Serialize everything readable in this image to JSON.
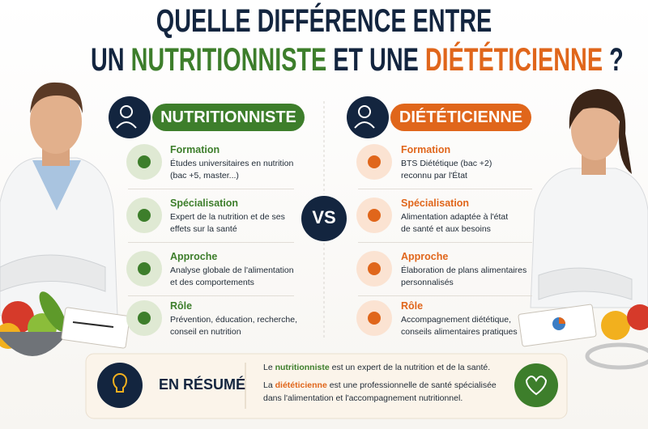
{
  "title": {
    "line1": "QUELLE DIFFÉRENCE ENTRE",
    "line2": {
      "part1": "UN",
      "part2": "NUTRITIONNISTE",
      "part3": "ET UNE",
      "part4": "DIÉTÉTICIENNE",
      "part5": "?"
    }
  },
  "left": {
    "header": "NUTRITIONNISTE",
    "items": [
      {
        "title": "Formation",
        "lines": [
          "Études universitaires en nutrition",
          "(bac +5, master...)"
        ]
      },
      {
        "title": "Spécialisation",
        "lines": [
          "Expert de la nutrition et de ses",
          "effets sur la santé"
        ]
      },
      {
        "title": "Approche",
        "lines": [
          "Analyse globale de l'alimentation",
          "et des comportements"
        ]
      },
      {
        "title": "Rôle",
        "lines": [
          "Prévention, éducation, recherche,",
          "conseil en nutrition"
        ]
      }
    ]
  },
  "vs": "VS",
  "right": {
    "header": "DIÉTÉTICIENNE",
    "items": [
      {
        "title": "Formation",
        "lines": [
          "BTS Diététique (bac +2)",
          "reconnu par l'État"
        ]
      },
      {
        "title": "Spécialisation",
        "lines": [
          "Alimentation adaptée à l'état",
          "de santé et aux besoins"
        ]
      },
      {
        "title": "Approche",
        "lines": [
          "Élaboration de plans alimentaires",
          "personnalisés"
        ]
      },
      {
        "title": "Rôle",
        "lines": [
          "Accompagnement diététique,",
          "conseils alimentaires pratiques"
        ]
      }
    ]
  },
  "summary": {
    "title": "EN RÉSUMÉ",
    "line1": [
      "Le",
      "nutritionniste",
      "est un expert de la nutrition et de la santé."
    ],
    "line2": [
      "La",
      "diététicienne",
      "est une professionnelle de santé spécialisée"
    ],
    "line3": "dans l'alimentation et l'accompagnement nutritionnel."
  }
}
